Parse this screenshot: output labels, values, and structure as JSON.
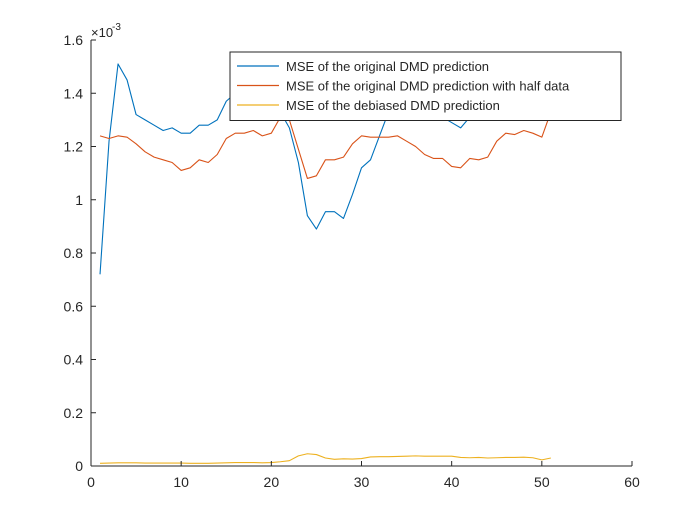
{
  "chart_data": {
    "type": "line",
    "title": "",
    "xlabel": "",
    "ylabel": "",
    "y_exponent_label": "×10",
    "y_exponent_power": "-3",
    "xlim": [
      0,
      60
    ],
    "ylim": [
      0,
      1.6
    ],
    "x_ticks": [
      0,
      10,
      20,
      30,
      40,
      50,
      60
    ],
    "y_ticks": [
      0,
      0.2,
      0.4,
      0.6,
      0.8,
      1,
      1.2,
      1.4,
      1.6
    ],
    "x_tick_labels": [
      "0",
      "10",
      "20",
      "30",
      "40",
      "50",
      "60"
    ],
    "y_tick_labels": [
      "0",
      "0.2",
      "0.4",
      "0.6",
      "0.8",
      "1",
      "1.2",
      "1.4",
      "1.6"
    ],
    "grid": false,
    "legend_position": "top-right",
    "x": [
      1,
      2,
      3,
      4,
      5,
      6,
      7,
      8,
      9,
      10,
      11,
      12,
      13,
      14,
      15,
      16,
      17,
      18,
      19,
      20,
      21,
      22,
      23,
      24,
      25,
      26,
      27,
      28,
      29,
      30,
      31,
      32,
      33,
      34,
      35,
      36,
      37,
      38,
      39,
      40,
      41,
      42,
      43,
      44,
      45,
      46,
      47,
      48,
      49,
      50,
      51
    ],
    "series": [
      {
        "name": "MSE of the original DMD prediction",
        "color": "#0072BD",
        "values": [
          0.72,
          1.22,
          1.51,
          1.45,
          1.32,
          1.3,
          1.28,
          1.26,
          1.27,
          1.25,
          1.25,
          1.28,
          1.28,
          1.3,
          1.37,
          1.4,
          1.42,
          1.41,
          1.38,
          1.36,
          1.33,
          1.27,
          1.14,
          0.94,
          0.89,
          0.955,
          0.955,
          0.93,
          1.02,
          1.12,
          1.15,
          1.24,
          1.33,
          1.38,
          1.35,
          1.33,
          1.32,
          1.3,
          1.31,
          1.29,
          1.27,
          1.31,
          1.3,
          1.32,
          1.34,
          1.35,
          1.36,
          1.35,
          1.34,
          1.33,
          1.36
        ]
      },
      {
        "name": "MSE of the original DMD prediction with half data",
        "color": "#D95319",
        "values": [
          1.24,
          1.23,
          1.24,
          1.235,
          1.21,
          1.18,
          1.16,
          1.15,
          1.14,
          1.11,
          1.12,
          1.15,
          1.14,
          1.17,
          1.23,
          1.25,
          1.25,
          1.26,
          1.24,
          1.25,
          1.31,
          1.3,
          1.19,
          1.08,
          1.09,
          1.15,
          1.15,
          1.16,
          1.21,
          1.24,
          1.235,
          1.235,
          1.235,
          1.24,
          1.22,
          1.2,
          1.17,
          1.155,
          1.155,
          1.125,
          1.12,
          1.155,
          1.15,
          1.16,
          1.22,
          1.25,
          1.245,
          1.26,
          1.25,
          1.235,
          1.33
        ]
      },
      {
        "name": "MSE of the debiased DMD prediction",
        "color": "#EDB120",
        "values": [
          0.01,
          0.011,
          0.012,
          0.012,
          0.012,
          0.011,
          0.011,
          0.011,
          0.011,
          0.011,
          0.01,
          0.01,
          0.01,
          0.011,
          0.012,
          0.013,
          0.013,
          0.013,
          0.012,
          0.013,
          0.016,
          0.02,
          0.038,
          0.046,
          0.043,
          0.03,
          0.025,
          0.027,
          0.026,
          0.028,
          0.034,
          0.035,
          0.035,
          0.036,
          0.037,
          0.038,
          0.037,
          0.037,
          0.037,
          0.037,
          0.032,
          0.031,
          0.032,
          0.03,
          0.031,
          0.032,
          0.032,
          0.033,
          0.031,
          0.023,
          0.03
        ]
      }
    ]
  }
}
